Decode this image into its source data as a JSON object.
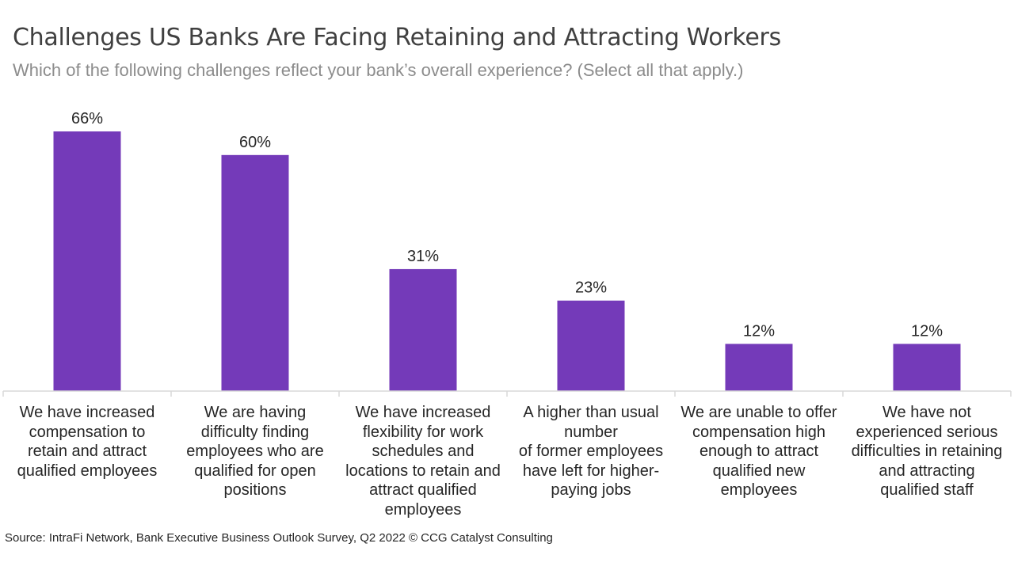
{
  "title": "Challenges US Banks Are Facing Retaining and Attracting Workers",
  "subtitle": "Which of the following challenges reflect your bank’s overall experience? (Select all that apply.)",
  "source": "Source: IntraFi Network, Bank Executive Business Outlook Survey, Q2 2022 © CCG Catalyst Consulting",
  "colors": {
    "bar": "#743ab9",
    "axis": "#d9d9d9",
    "label": "#262626"
  },
  "chart_data": {
    "type": "bar",
    "categories": [
      "We have increased\ncompensation to\nretain and attract\nqualified employees",
      "We are having\ndifficulty finding\nemployees who are\nqualified for open\npositions",
      "We have increased\nflexibility for work\nschedules and\nlocations to retain and\nattract qualified\nemployees",
      "A higher than usual\nnumber\nof former employees\nhave left for higher-\npaying jobs",
      "We are unable to offer\ncompensation high\nenough to attract\nqualified new\nemployees",
      "We have not\nexperienced serious\ndifficulties in retaining\nand attracting\nqualified staff"
    ],
    "values": [
      66,
      60,
      31,
      23,
      12,
      12
    ],
    "value_labels": [
      "66%",
      "60%",
      "31%",
      "23%",
      "12%",
      "12%"
    ],
    "ylim": [
      0,
      66
    ],
    "grid": false,
    "legend": "none"
  }
}
